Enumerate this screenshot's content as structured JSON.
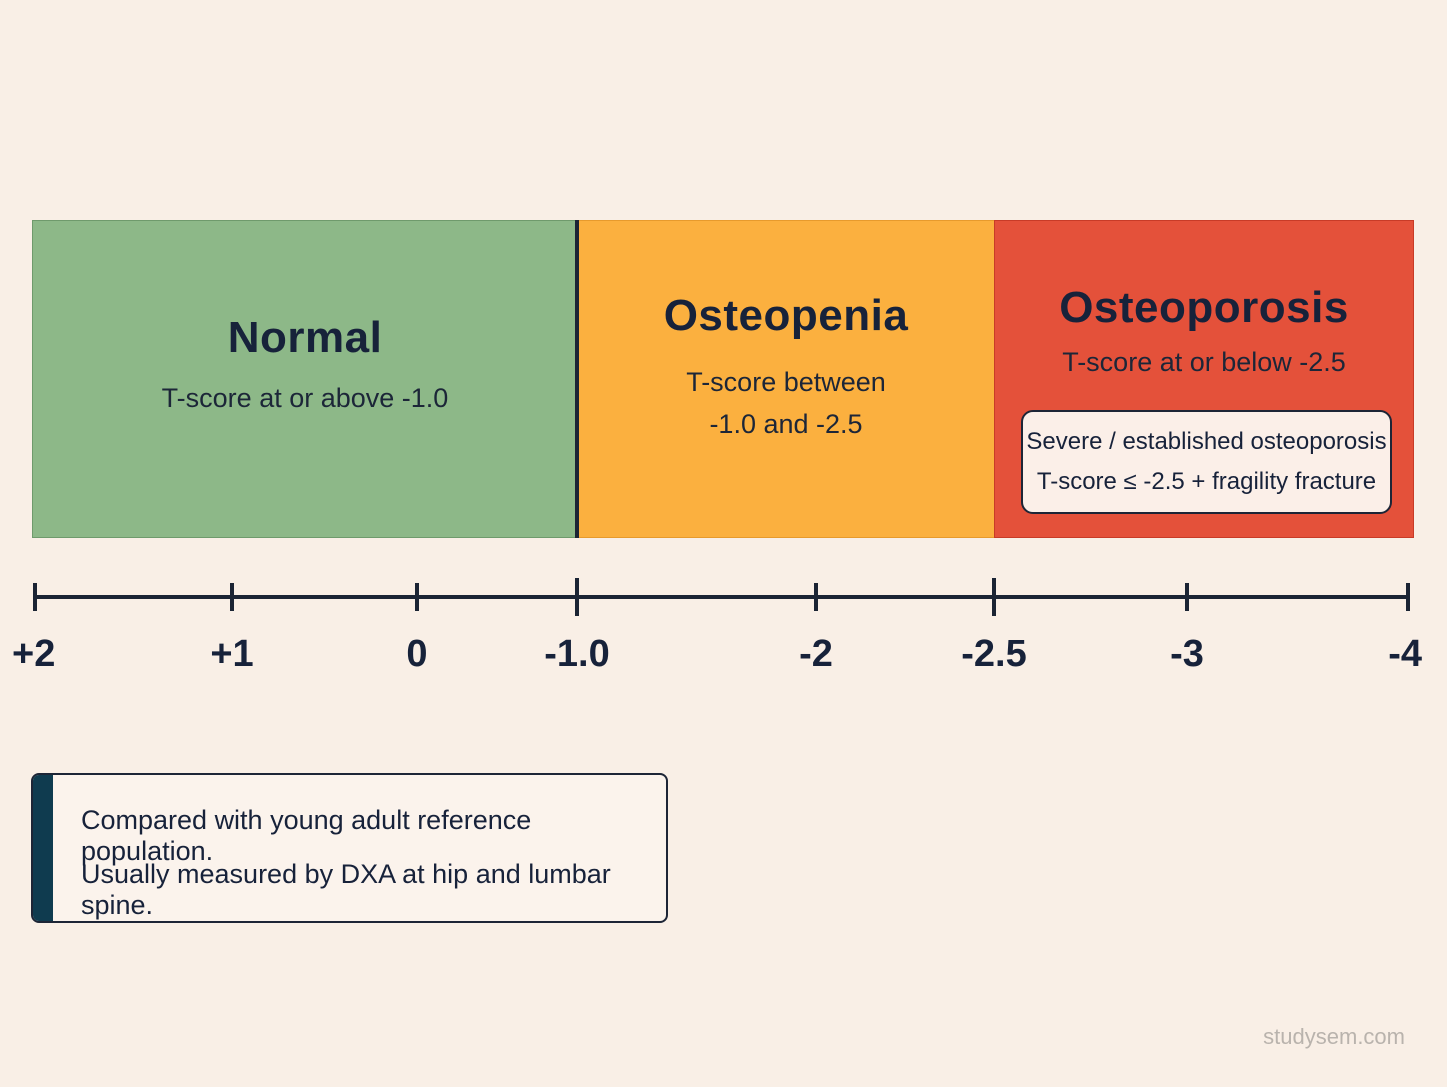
{
  "categories": [
    {
      "id": "normal",
      "title": "Normal",
      "description": "T-score at or above -1.0",
      "color": "#8db888"
    },
    {
      "id": "osteopenia",
      "title": "Osteopenia",
      "description_lines": [
        "T-score between",
        "-1.0 and -2.5"
      ],
      "color": "#fbb03f"
    },
    {
      "id": "osteoporosis",
      "title": "Osteoporosis",
      "description": "T-score at or below -2.5",
      "color": "#e4513a"
    }
  ],
  "severe": {
    "line1": "Severe / established osteoporosis",
    "line2": "T-score ≤ -2.5 + fragility fracture"
  },
  "axis": {
    "range": [
      2,
      -4
    ],
    "ticks": [
      {
        "value": 2,
        "label": "+2"
      },
      {
        "value": 1,
        "label": "+1"
      },
      {
        "value": 0,
        "label": "0"
      },
      {
        "value": -1.0,
        "label": "-1.0",
        "major": true
      },
      {
        "value": -2,
        "label": "-2"
      },
      {
        "value": -2.5,
        "label": "-2.5",
        "major": true
      },
      {
        "value": -3,
        "label": "-3"
      },
      {
        "value": -4,
        "label": "-4"
      }
    ]
  },
  "note": {
    "line1": "Compared with young adult reference population.",
    "line2": "Usually measured by DXA at hip and lumbar spine."
  },
  "watermark": "studysem.com"
}
